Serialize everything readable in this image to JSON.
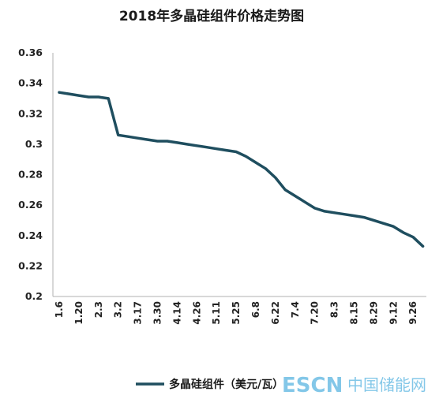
{
  "chart_data": {
    "type": "line",
    "title": "2018年多晶硅组件价格走势图",
    "xlabel": "",
    "ylabel": "",
    "ylim": [
      0.2,
      0.36
    ],
    "yticks": [
      "0.2",
      "0.22",
      "0.24",
      "0.26",
      "0.28",
      "0.3",
      "0.32",
      "0.34",
      "0.36"
    ],
    "ytick_values": [
      0.2,
      0.22,
      0.24,
      0.26,
      0.28,
      0.3,
      0.32,
      0.34,
      0.36
    ],
    "categories": [
      "1.6",
      "1.20",
      "2.3",
      "3.2",
      "3.17",
      "3.30",
      "4.14",
      "4.26",
      "5.11",
      "5.25",
      "6.8",
      "6.22",
      "7.4",
      "7.20",
      "8.3",
      "8.15",
      "8.29",
      "9.12",
      "9.26"
    ],
    "series": [
      {
        "name": "多晶硅组件（美元/瓦）",
        "color": "#1f4e5f",
        "points": [
          [
            0,
            0.334
          ],
          [
            0.5,
            0.333
          ],
          [
            1,
            0.332
          ],
          [
            1.5,
            0.331
          ],
          [
            2,
            0.331
          ],
          [
            2.5,
            0.33
          ],
          [
            3,
            0.306
          ],
          [
            3.5,
            0.305
          ],
          [
            4,
            0.304
          ],
          [
            4.5,
            0.303
          ],
          [
            5,
            0.302
          ],
          [
            5.5,
            0.302
          ],
          [
            6,
            0.301
          ],
          [
            6.5,
            0.3
          ],
          [
            7,
            0.299
          ],
          [
            7.5,
            0.298
          ],
          [
            8,
            0.297
          ],
          [
            8.5,
            0.296
          ],
          [
            9,
            0.295
          ],
          [
            9.5,
            0.292
          ],
          [
            10,
            0.288
          ],
          [
            10.5,
            0.284
          ],
          [
            11,
            0.278
          ],
          [
            11.5,
            0.27
          ],
          [
            12,
            0.266
          ],
          [
            12.5,
            0.262
          ],
          [
            13,
            0.258
          ],
          [
            13.5,
            0.256
          ],
          [
            14,
            0.255
          ],
          [
            14.5,
            0.254
          ],
          [
            15,
            0.253
          ],
          [
            15.5,
            0.252
          ],
          [
            16,
            0.25
          ],
          [
            16.5,
            0.248
          ],
          [
            17,
            0.246
          ],
          [
            17.5,
            0.242
          ],
          [
            18,
            0.239
          ],
          [
            18.5,
            0.233
          ]
        ]
      }
    ],
    "grid": false,
    "legend_position": "bottom"
  },
  "watermark": {
    "latin": "ESCN",
    "chinese": "中国储能网"
  },
  "colors": {
    "line": "#1f4e5f",
    "axis": "#b0b0b0",
    "watermark": "#1e9ad6"
  }
}
